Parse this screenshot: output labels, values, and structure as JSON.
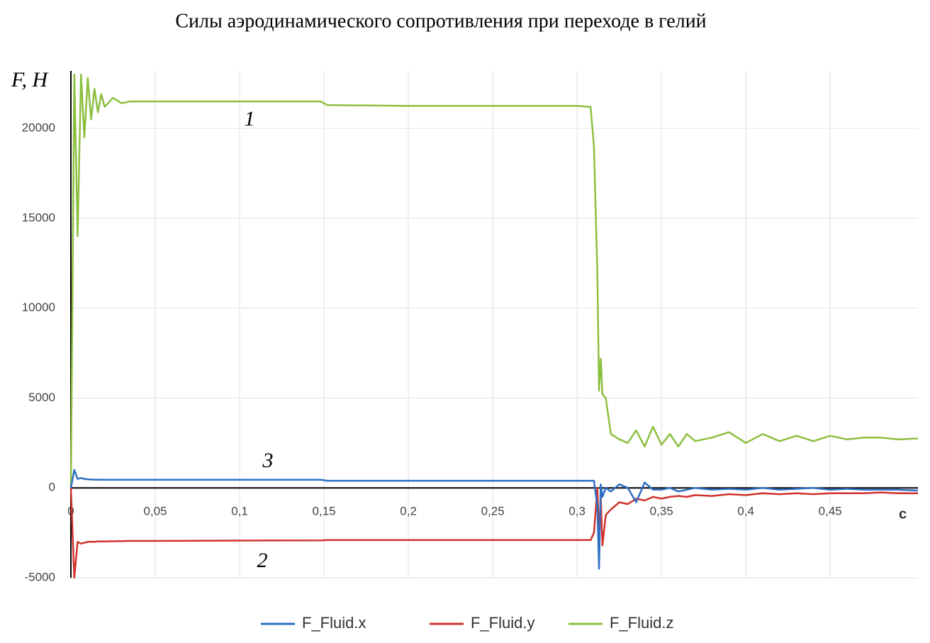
{
  "chart_data": {
    "type": "line",
    "title": "Силы аэродинамического сопротивления при переходе в гелий",
    "y_label": "F, H",
    "x_label": "с",
    "annotations": [
      {
        "text": "1"
      },
      {
        "text": "3"
      },
      {
        "text": "2"
      }
    ],
    "x": [
      0,
      0.002,
      0.004,
      0.006,
      0.008,
      0.01,
      0.012,
      0.014,
      0.016,
      0.018,
      0.02,
      0.025,
      0.03,
      0.035,
      0.05,
      0.1,
      0.148,
      0.152,
      0.2,
      0.25,
      0.3,
      0.308,
      0.31,
      0.312,
      0.313,
      0.314,
      0.315,
      0.317,
      0.32,
      0.325,
      0.33,
      0.335,
      0.34,
      0.345,
      0.35,
      0.355,
      0.36,
      0.365,
      0.37,
      0.38,
      0.39,
      0.4,
      0.41,
      0.42,
      0.43,
      0.44,
      0.45,
      0.46,
      0.47,
      0.48,
      0.49,
      0.502
    ],
    "series": [
      {
        "name": "F_Fluid.x",
        "color": "#2e6fc4",
        "values": [
          0,
          1000,
          500,
          550,
          500,
          480,
          470,
          460,
          460,
          450,
          450,
          450,
          450,
          450,
          450,
          450,
          450,
          400,
          400,
          400,
          400,
          400,
          400,
          -1000,
          -4500,
          200,
          -500,
          0,
          -200,
          200,
          0,
          -800,
          300,
          -100,
          -100,
          0,
          -200,
          -100,
          0,
          -100,
          -50,
          -100,
          0,
          -100,
          -50,
          0,
          -100,
          -50,
          -100,
          -100,
          -100,
          -150
        ]
      },
      {
        "name": "F_Fluid.y",
        "color": "#d0312d",
        "values": [
          0,
          -5000,
          -3000,
          -3100,
          -3050,
          -3000,
          -3000,
          -3000,
          -2980,
          -2980,
          -2980,
          -2970,
          -2960,
          -2950,
          -2950,
          -2930,
          -2920,
          -2900,
          -2900,
          -2900,
          -2900,
          -2900,
          -2500,
          0,
          -2700,
          -500,
          -3200,
          -1500,
          -1200,
          -800,
          -900,
          -600,
          -700,
          -500,
          -600,
          -500,
          -450,
          -500,
          -400,
          -450,
          -350,
          -400,
          -300,
          -350,
          -300,
          -350,
          -300,
          -300,
          -300,
          -250,
          -300,
          -300
        ]
      },
      {
        "name": "F_Fluid.z",
        "color": "#8cbf3f",
        "values": [
          0,
          23000,
          14000,
          23000,
          19500,
          22800,
          20500,
          22200,
          20900,
          21900,
          21200,
          21700,
          21400,
          21500,
          21500,
          21500,
          21500,
          21300,
          21250,
          21250,
          21250,
          21200,
          19000,
          12000,
          5400,
          7200,
          5200,
          5000,
          3000,
          2700,
          2500,
          3200,
          2300,
          3400,
          2400,
          3000,
          2300,
          3000,
          2600,
          2800,
          3100,
          2500,
          3000,
          2600,
          2900,
          2600,
          2900,
          2700,
          2800,
          2800,
          2700,
          2750
        ]
      }
    ],
    "xlim": [
      0,
      0.502
    ],
    "ylim": [
      -5000,
      23200
    ],
    "xticks": [
      0,
      {
        "value": 0.05,
        "label": "0,05"
      },
      {
        "value": 0.1,
        "label": "0,1"
      },
      {
        "value": 0.15,
        "label": "0,15"
      },
      {
        "value": 0.2,
        "label": "0,2"
      },
      {
        "value": 0.25,
        "label": "0,25"
      },
      {
        "value": 0.3,
        "label": "0,3"
      },
      {
        "value": 0.35,
        "label": "0,35"
      },
      {
        "value": 0.4,
        "label": "0,4"
      },
      {
        "value": 0.45,
        "label": "0,45"
      }
    ],
    "yticks": [
      -5000,
      0,
      5000,
      10000,
      15000,
      20000
    ],
    "grid": true,
    "legend": "bottom"
  }
}
